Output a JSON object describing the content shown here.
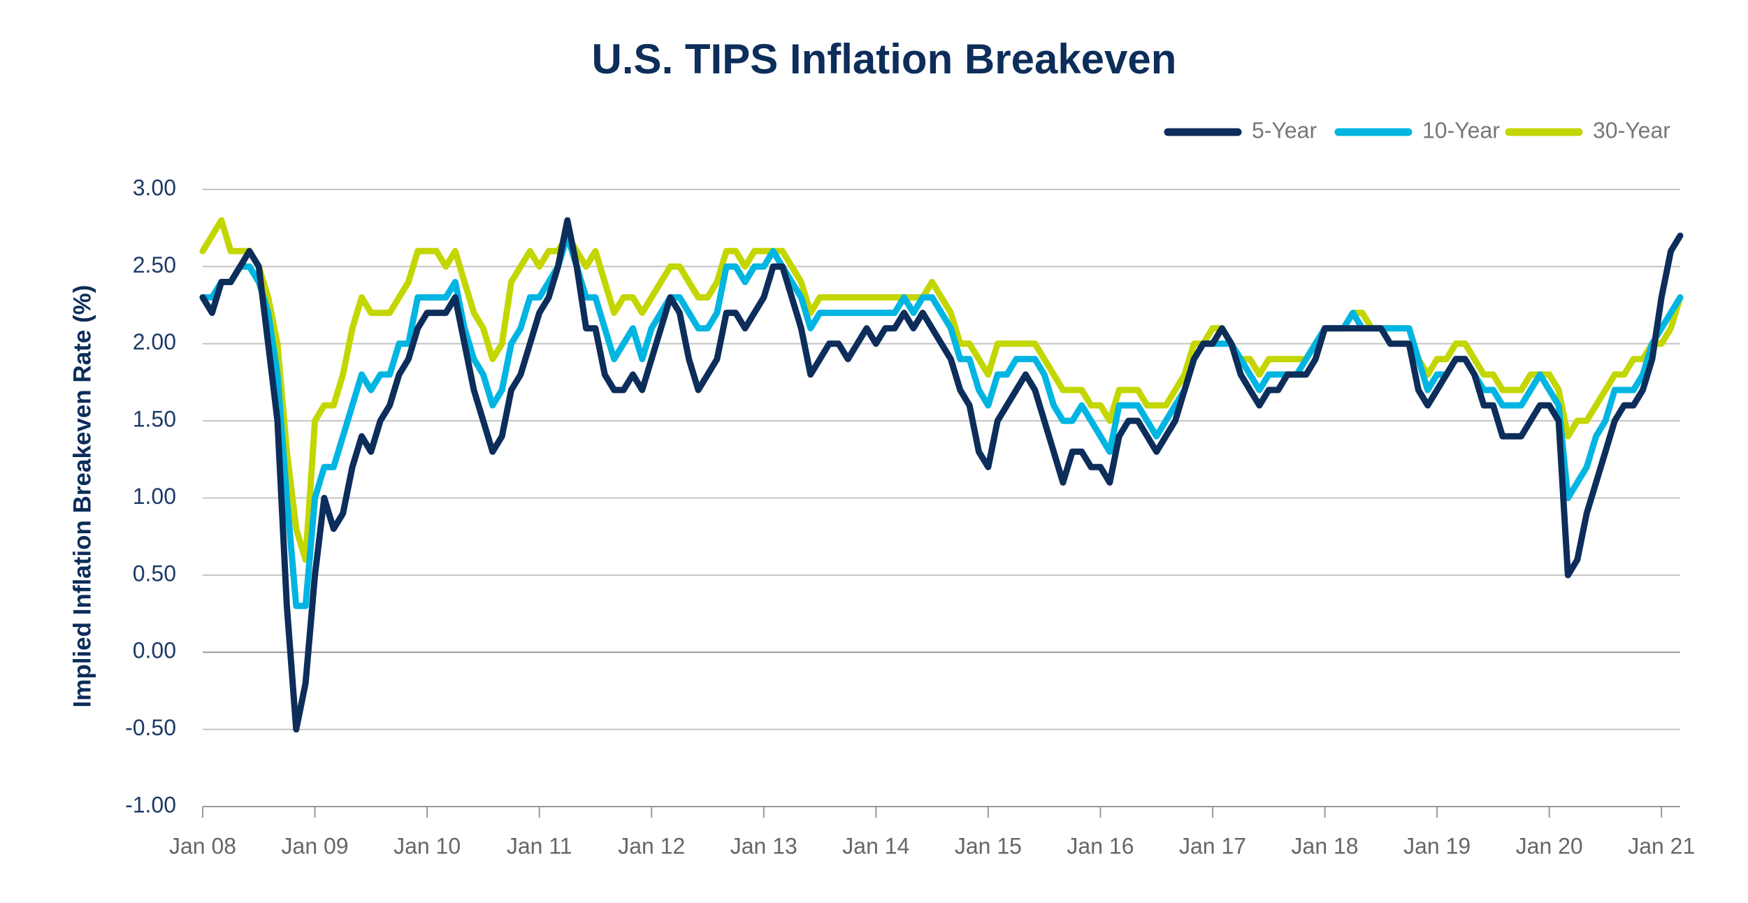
{
  "chart_data": {
    "type": "line",
    "title": "U.S. TIPS Inflation Breakeven",
    "y_label": "Implied Inflation Breakeven Rate (%)",
    "legend": "top-right",
    "grid": true,
    "x": [
      "2008-01",
      "2008-02",
      "2008-03",
      "2008-04",
      "2008-05",
      "2008-06",
      "2008-07",
      "2008-08",
      "2008-09",
      "2008-10",
      "2008-11",
      "2008-12",
      "2009-01",
      "2009-02",
      "2009-03",
      "2009-04",
      "2009-05",
      "2009-06",
      "2009-07",
      "2009-08",
      "2009-09",
      "2009-10",
      "2009-11",
      "2009-12",
      "2010-01",
      "2010-02",
      "2010-03",
      "2010-04",
      "2010-05",
      "2010-06",
      "2010-07",
      "2010-08",
      "2010-09",
      "2010-10",
      "2010-11",
      "2010-12",
      "2011-01",
      "2011-02",
      "2011-03",
      "2011-04",
      "2011-05",
      "2011-06",
      "2011-07",
      "2011-08",
      "2011-09",
      "2011-10",
      "2011-11",
      "2011-12",
      "2012-01",
      "2012-02",
      "2012-03",
      "2012-04",
      "2012-05",
      "2012-06",
      "2012-07",
      "2012-08",
      "2012-09",
      "2012-10",
      "2012-11",
      "2012-12",
      "2013-01",
      "2013-02",
      "2013-03",
      "2013-04",
      "2013-05",
      "2013-06",
      "2013-07",
      "2013-08",
      "2013-09",
      "2013-10",
      "2013-11",
      "2013-12",
      "2014-01",
      "2014-02",
      "2014-03",
      "2014-04",
      "2014-05",
      "2014-06",
      "2014-07",
      "2014-08",
      "2014-09",
      "2014-10",
      "2014-11",
      "2014-12",
      "2015-01",
      "2015-02",
      "2015-03",
      "2015-04",
      "2015-05",
      "2015-06",
      "2015-07",
      "2015-08",
      "2015-09",
      "2015-10",
      "2015-11",
      "2015-12",
      "2016-01",
      "2016-02",
      "2016-03",
      "2016-04",
      "2016-05",
      "2016-06",
      "2016-07",
      "2016-08",
      "2016-09",
      "2016-10",
      "2016-11",
      "2016-12",
      "2017-01",
      "2017-02",
      "2017-03",
      "2017-04",
      "2017-05",
      "2017-06",
      "2017-07",
      "2017-08",
      "2017-09",
      "2017-10",
      "2017-11",
      "2017-12",
      "2018-01",
      "2018-02",
      "2018-03",
      "2018-04",
      "2018-05",
      "2018-06",
      "2018-07",
      "2018-08",
      "2018-09",
      "2018-10",
      "2018-11",
      "2018-12",
      "2019-01",
      "2019-02",
      "2019-03",
      "2019-04",
      "2019-05",
      "2019-06",
      "2019-07",
      "2019-08",
      "2019-09",
      "2019-10",
      "2019-11",
      "2019-12",
      "2020-01",
      "2020-02",
      "2020-03",
      "2020-04",
      "2020-05",
      "2020-06",
      "2020-07",
      "2020-08",
      "2020-09",
      "2020-10",
      "2020-11",
      "2020-12",
      "2021-01",
      "2021-02",
      "2021-03"
    ],
    "series": [
      {
        "name": "5-Year",
        "color": "#0d2d5a",
        "values": [
          2.3,
          2.2,
          2.4,
          2.4,
          2.5,
          2.6,
          2.5,
          2.0,
          1.5,
          0.3,
          -0.5,
          -0.2,
          0.5,
          1.0,
          0.8,
          0.9,
          1.2,
          1.4,
          1.3,
          1.5,
          1.6,
          1.8,
          1.9,
          2.1,
          2.2,
          2.2,
          2.2,
          2.3,
          2.0,
          1.7,
          1.5,
          1.3,
          1.4,
          1.7,
          1.8,
          2.0,
          2.2,
          2.3,
          2.5,
          2.8,
          2.5,
          2.1,
          2.1,
          1.8,
          1.7,
          1.7,
          1.8,
          1.7,
          1.9,
          2.1,
          2.3,
          2.2,
          1.9,
          1.7,
          1.8,
          1.9,
          2.2,
          2.2,
          2.1,
          2.2,
          2.3,
          2.5,
          2.5,
          2.3,
          2.1,
          1.8,
          1.9,
          2.0,
          2.0,
          1.9,
          2.0,
          2.1,
          2.0,
          2.1,
          2.1,
          2.2,
          2.1,
          2.2,
          2.1,
          2.0,
          1.9,
          1.7,
          1.6,
          1.3,
          1.2,
          1.5,
          1.6,
          1.7,
          1.8,
          1.7,
          1.5,
          1.3,
          1.1,
          1.3,
          1.3,
          1.2,
          1.2,
          1.1,
          1.4,
          1.5,
          1.5,
          1.4,
          1.3,
          1.4,
          1.5,
          1.7,
          1.9,
          2.0,
          2.0,
          2.1,
          2.0,
          1.8,
          1.7,
          1.6,
          1.7,
          1.7,
          1.8,
          1.8,
          1.8,
          1.9,
          2.1,
          2.1,
          2.1,
          2.1,
          2.1,
          2.1,
          2.1,
          2.0,
          2.0,
          2.0,
          1.7,
          1.6,
          1.7,
          1.8,
          1.9,
          1.9,
          1.8,
          1.6,
          1.6,
          1.4,
          1.4,
          1.4,
          1.5,
          1.6,
          1.6,
          1.5,
          0.5,
          0.6,
          0.9,
          1.1,
          1.3,
          1.5,
          1.6,
          1.6,
          1.7,
          1.9,
          2.3,
          2.6,
          2.7
        ]
      },
      {
        "name": "10-Year",
        "color": "#00b5e2",
        "values": [
          2.3,
          2.3,
          2.4,
          2.4,
          2.5,
          2.5,
          2.4,
          2.2,
          1.8,
          1.0,
          0.3,
          0.3,
          1.0,
          1.2,
          1.2,
          1.4,
          1.6,
          1.8,
          1.7,
          1.8,
          1.8,
          2.0,
          2.0,
          2.3,
          2.3,
          2.3,
          2.3,
          2.4,
          2.1,
          1.9,
          1.8,
          1.6,
          1.7,
          2.0,
          2.1,
          2.3,
          2.3,
          2.4,
          2.5,
          2.7,
          2.5,
          2.3,
          2.3,
          2.1,
          1.9,
          2.0,
          2.1,
          1.9,
          2.1,
          2.2,
          2.3,
          2.3,
          2.2,
          2.1,
          2.1,
          2.2,
          2.5,
          2.5,
          2.4,
          2.5,
          2.5,
          2.6,
          2.5,
          2.4,
          2.3,
          2.1,
          2.2,
          2.2,
          2.2,
          2.2,
          2.2,
          2.2,
          2.2,
          2.2,
          2.2,
          2.3,
          2.2,
          2.3,
          2.3,
          2.2,
          2.1,
          1.9,
          1.9,
          1.7,
          1.6,
          1.8,
          1.8,
          1.9,
          1.9,
          1.9,
          1.8,
          1.6,
          1.5,
          1.5,
          1.6,
          1.5,
          1.4,
          1.3,
          1.6,
          1.6,
          1.6,
          1.5,
          1.4,
          1.5,
          1.6,
          1.7,
          1.9,
          2.0,
          2.0,
          2.0,
          2.0,
          1.9,
          1.8,
          1.7,
          1.8,
          1.8,
          1.8,
          1.8,
          1.9,
          2.0,
          2.1,
          2.1,
          2.1,
          2.2,
          2.1,
          2.1,
          2.1,
          2.1,
          2.1,
          2.1,
          1.9,
          1.7,
          1.8,
          1.8,
          1.9,
          1.9,
          1.8,
          1.7,
          1.7,
          1.6,
          1.6,
          1.6,
          1.7,
          1.8,
          1.7,
          1.6,
          1.0,
          1.1,
          1.2,
          1.4,
          1.5,
          1.7,
          1.7,
          1.7,
          1.8,
          2.0,
          2.1,
          2.2,
          2.3
        ]
      },
      {
        "name": "30-Year",
        "color": "#c4d600",
        "values": [
          2.6,
          2.7,
          2.8,
          2.6,
          2.6,
          2.6,
          2.5,
          2.3,
          2.0,
          1.3,
          0.8,
          0.6,
          1.5,
          1.6,
          1.6,
          1.8,
          2.1,
          2.3,
          2.2,
          2.2,
          2.2,
          2.3,
          2.4,
          2.6,
          2.6,
          2.6,
          2.5,
          2.6,
          2.4,
          2.2,
          2.1,
          1.9,
          2.0,
          2.4,
          2.5,
          2.6,
          2.5,
          2.6,
          2.6,
          2.7,
          2.6,
          2.5,
          2.6,
          2.4,
          2.2,
          2.3,
          2.3,
          2.2,
          2.3,
          2.4,
          2.5,
          2.5,
          2.4,
          2.3,
          2.3,
          2.4,
          2.6,
          2.6,
          2.5,
          2.6,
          2.6,
          2.6,
          2.6,
          2.5,
          2.4,
          2.2,
          2.3,
          2.3,
          2.3,
          2.3,
          2.3,
          2.3,
          2.3,
          2.3,
          2.3,
          2.3,
          2.3,
          2.3,
          2.4,
          2.3,
          2.2,
          2.0,
          2.0,
          1.9,
          1.8,
          2.0,
          2.0,
          2.0,
          2.0,
          2.0,
          1.9,
          1.8,
          1.7,
          1.7,
          1.7,
          1.6,
          1.6,
          1.5,
          1.7,
          1.7,
          1.7,
          1.6,
          1.6,
          1.6,
          1.7,
          1.8,
          2.0,
          2.0,
          2.1,
          2.1,
          2.0,
          1.9,
          1.9,
          1.8,
          1.9,
          1.9,
          1.9,
          1.9,
          1.9,
          2.0,
          2.1,
          2.1,
          2.1,
          2.2,
          2.2,
          2.1,
          2.1,
          2.1,
          2.1,
          2.1,
          1.9,
          1.8,
          1.9,
          1.9,
          2.0,
          2.0,
          1.9,
          1.8,
          1.8,
          1.7,
          1.7,
          1.7,
          1.8,
          1.8,
          1.8,
          1.7,
          1.4,
          1.5,
          1.5,
          1.6,
          1.7,
          1.8,
          1.8,
          1.9,
          1.9,
          2.0,
          2.0,
          2.1,
          2.3
        ]
      }
    ],
    "xlim": [
      "2008-01",
      "2021-03"
    ],
    "xticks": [
      {
        "value": "2008-01",
        "label": "Jan 08"
      },
      {
        "value": "2009-01",
        "label": "Jan 09"
      },
      {
        "value": "2010-01",
        "label": "Jan 10"
      },
      {
        "value": "2011-01",
        "label": "Jan 11"
      },
      {
        "value": "2012-01",
        "label": "Jan 12"
      },
      {
        "value": "2013-01",
        "label": "Jan 13"
      },
      {
        "value": "2014-01",
        "label": "Jan 14"
      },
      {
        "value": "2015-01",
        "label": "Jan 15"
      },
      {
        "value": "2016-01",
        "label": "Jan 16"
      },
      {
        "value": "2017-01",
        "label": "Jan 17"
      },
      {
        "value": "2018-01",
        "label": "Jan 18"
      },
      {
        "value": "2019-01",
        "label": "Jan 19"
      },
      {
        "value": "2020-01",
        "label": "Jan 20"
      },
      {
        "value": "2021-01",
        "label": "Jan 21"
      }
    ],
    "ylim": [
      -1,
      3
    ],
    "yticks": [
      {
        "value": -1,
        "label": "-1.00"
      },
      {
        "value": -0.5,
        "label": "-0.50"
      },
      {
        "value": 0,
        "label": "0.00"
      },
      {
        "value": 0.5,
        "label": "0.50"
      },
      {
        "value": 1,
        "label": "1.00"
      },
      {
        "value": 1.5,
        "label": "1.50"
      },
      {
        "value": 2,
        "label": "2.00"
      },
      {
        "value": 2.5,
        "label": "2.50"
      },
      {
        "value": 3,
        "label": "3.00"
      }
    ]
  }
}
